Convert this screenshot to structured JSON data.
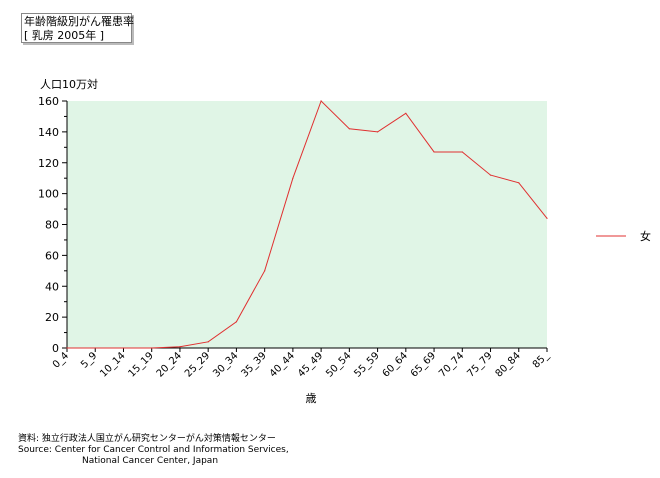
{
  "title": {
    "line1": "年齢階級別がん罹患率",
    "line2": "[ 乳房 2005年 ]"
  },
  "chart_data": {
    "type": "line",
    "ylabel": "人口10万対",
    "xlabel": "歳",
    "ylim": [
      0,
      160
    ],
    "yticks": [
      0,
      20,
      40,
      60,
      80,
      100,
      120,
      140,
      160
    ],
    "categories": [
      "0_4",
      "5_9",
      "10_14",
      "15_19",
      "20_24",
      "25_29",
      "30_34",
      "35_39",
      "40_44",
      "45_49",
      "50_54",
      "55_59",
      "60_64",
      "65_69",
      "70_74",
      "75_79",
      "80_84",
      "85_"
    ],
    "series": [
      {
        "name": "女",
        "color": "#e03030",
        "values": [
          0,
          0,
          0,
          0,
          0.8,
          4,
          17,
          50,
          110,
          160,
          142,
          140,
          152,
          127,
          127,
          112,
          107,
          84
        ]
      }
    ],
    "grid": false,
    "legend_position": "right",
    "plot_background": "#e0f5e6"
  },
  "source": {
    "line1": "資料: 独立行政法人国立がん研究センターがん対策情報センター",
    "line2": "Source: Center for Cancer Control and Information Services,",
    "line3": "National Cancer Center, Japan"
  }
}
